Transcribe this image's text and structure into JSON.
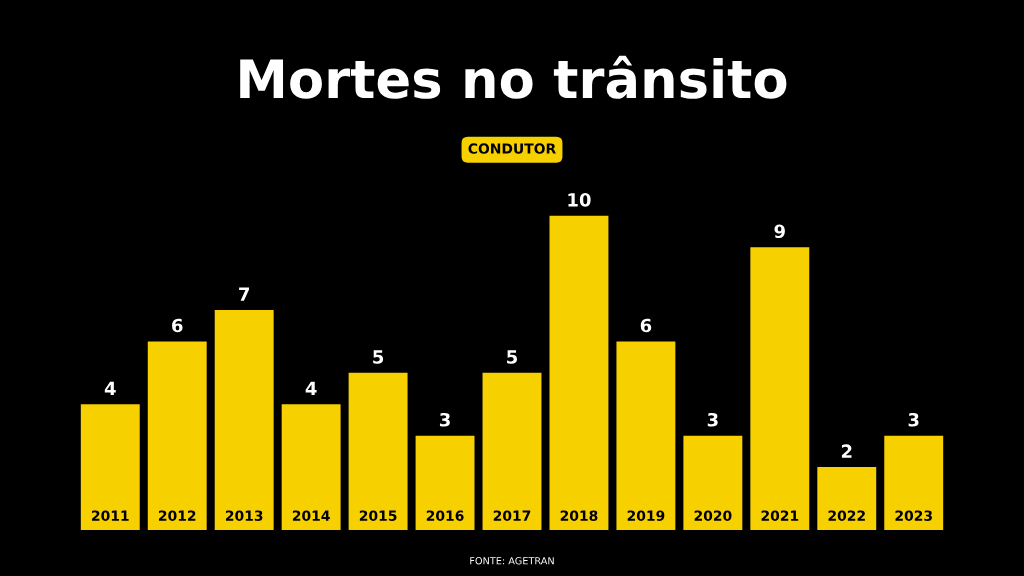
{
  "chart_data": {
    "type": "bar",
    "title": "Mortes no trânsito",
    "subtitle": "CONDUTOR",
    "categories": [
      "2011",
      "2012",
      "2013",
      "2014",
      "2015",
      "2016",
      "2017",
      "2018",
      "2019",
      "2020",
      "2021",
      "2022",
      "2023"
    ],
    "values": [
      4,
      6,
      7,
      4,
      5,
      3,
      5,
      10,
      6,
      3,
      9,
      2,
      3
    ],
    "color": "#f7d000",
    "data_labels": true,
    "annotations": [
      "FONTE: AGETRAN"
    ]
  }
}
